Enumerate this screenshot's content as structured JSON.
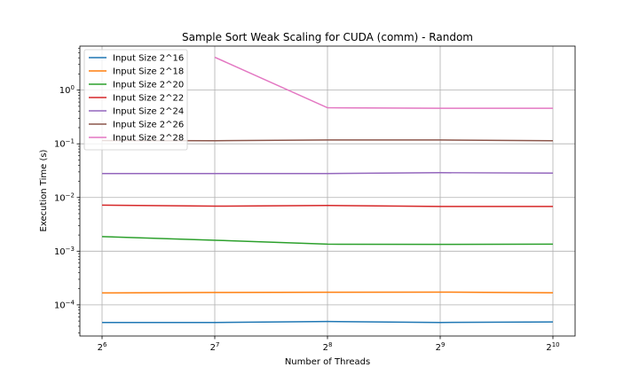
{
  "chart_data": {
    "type": "line",
    "title": "Sample Sort Weak Scaling for CUDA (comm) - Random",
    "xlabel": "Number of Threads",
    "ylabel": "Execution Time (s)",
    "xscale": "log2",
    "yscale": "log10",
    "x": [
      64,
      128,
      256,
      512,
      1024
    ],
    "x_tick_labels": [
      {
        "base": "2",
        "exp": "6"
      },
      {
        "base": "2",
        "exp": "7"
      },
      {
        "base": "2",
        "exp": "8"
      },
      {
        "base": "2",
        "exp": "9"
      },
      {
        "base": "2",
        "exp": "10"
      }
    ],
    "y_tick_labels": [
      {
        "base": "10",
        "exp": "−4"
      },
      {
        "base": "10",
        "exp": "−3"
      },
      {
        "base": "10",
        "exp": "−2"
      },
      {
        "base": "10",
        "exp": "−1"
      },
      {
        "base": "10",
        "exp": "0"
      }
    ],
    "y_tick_values": [
      0.0001,
      0.001,
      0.01,
      0.1,
      1
    ],
    "grid": true,
    "legend_position": "top-left",
    "series": [
      {
        "name": "Input Size 2^16",
        "color": "#1f77b4",
        "values": [
          4.7e-05,
          4.7e-05,
          4.9e-05,
          4.7e-05,
          4.8e-05
        ]
      },
      {
        "name": "Input Size 2^18",
        "color": "#ff7f0e",
        "values": [
          0.000167,
          0.00017,
          0.000172,
          0.000173,
          0.000168
        ]
      },
      {
        "name": "Input Size 2^20",
        "color": "#2ca02c",
        "values": [
          0.00187,
          0.0016,
          0.00135,
          0.00134,
          0.00135
        ]
      },
      {
        "name": "Input Size 2^22",
        "color": "#d62728",
        "values": [
          0.0072,
          0.0069,
          0.0071,
          0.0068,
          0.0068
        ]
      },
      {
        "name": "Input Size 2^24",
        "color": "#9467bd",
        "values": [
          0.028,
          0.028,
          0.028,
          0.029,
          0.0285
        ]
      },
      {
        "name": "Input Size 2^26",
        "color": "#8c564b",
        "values": [
          0.115,
          0.114,
          0.118,
          0.118,
          0.114
        ]
      },
      {
        "name": "Input Size 2^28",
        "color": "#e377c2",
        "values": [
          null,
          4.1,
          0.47,
          0.46,
          0.46
        ]
      }
    ]
  }
}
